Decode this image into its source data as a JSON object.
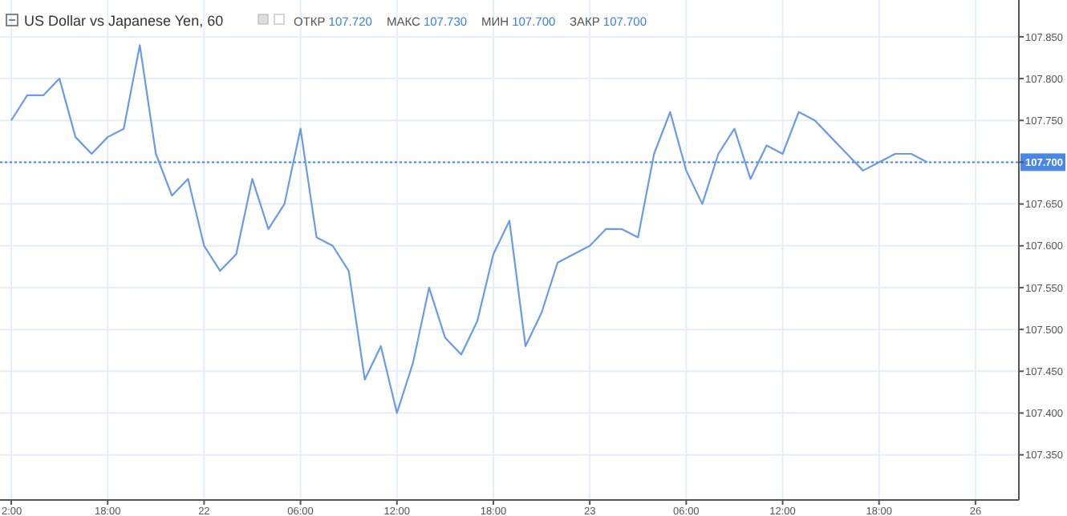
{
  "chart_data": {
    "type": "line",
    "title": "US Dollar vs Japanese Yen, 60",
    "annotations": [
      "ОТКР 107.720",
      "МАКС 107.730",
      "МИН 107.700",
      "ЗАКР 107.700"
    ],
    "categories": [
      "2:00",
      null,
      null,
      null,
      null,
      null,
      "18:00",
      null,
      null,
      null,
      null,
      null,
      "22",
      null,
      null,
      null,
      null,
      null,
      "06:00",
      null,
      null,
      null,
      null,
      null,
      "12:00",
      null,
      null,
      null,
      null,
      null,
      "18:00",
      null,
      null,
      null,
      null,
      null,
      "23",
      null,
      null,
      null,
      null,
      null,
      "06:00",
      null,
      null,
      null,
      null,
      null,
      "12:00",
      null,
      null,
      null,
      null,
      null,
      "18:00",
      null,
      null,
      null,
      null,
      null,
      "26",
      null,
      null
    ],
    "series": [
      {
        "color": "#6a9be8",
        "values": [
          107.75,
          107.78,
          107.78,
          107.8,
          107.73,
          107.71,
          107.73,
          107.74,
          107.84,
          107.71,
          107.66,
          107.68,
          107.6,
          107.57,
          107.59,
          107.68,
          107.62,
          107.65,
          107.74,
          107.61,
          107.6,
          107.57,
          107.44,
          107.48,
          107.4,
          107.46,
          107.55,
          107.49,
          107.47,
          107.51,
          107.59,
          107.63,
          107.48,
          107.52,
          107.58,
          107.59,
          107.6,
          107.62,
          107.62,
          107.61,
          107.71,
          107.76,
          107.69,
          107.65,
          107.71,
          107.74,
          107.68,
          107.72,
          107.71,
          107.76,
          107.75,
          107.73,
          107.71,
          107.69,
          107.7,
          107.71,
          107.71,
          107.7,
          null,
          null,
          null,
          null,
          null
        ]
      }
    ],
    "ylim": [
      107.296,
      107.894
    ],
    "yticks": [
      {
        "value": 107.35,
        "label": "107.350"
      },
      {
        "value": 107.4,
        "label": "107.400"
      },
      {
        "value": 107.45,
        "label": "107.450"
      },
      {
        "value": 107.5,
        "label": "107.500"
      },
      {
        "value": 107.55,
        "label": "107.550"
      },
      {
        "value": 107.6,
        "label": "107.600"
      },
      {
        "value": 107.65,
        "label": "107.650"
      },
      {
        "value": 107.7,
        "label": "107.700"
      },
      {
        "value": 107.75,
        "label": "107.750"
      },
      {
        "value": 107.8,
        "label": "107.800"
      },
      {
        "value": 107.85,
        "label": "107.850"
      }
    ],
    "ref_lines": [
      {
        "axis": "y",
        "value": 107.7,
        "color": "#4a86e8",
        "line_style": "dotted"
      }
    ],
    "grid": true,
    "marker": "none",
    "line_style": "solid"
  }
}
